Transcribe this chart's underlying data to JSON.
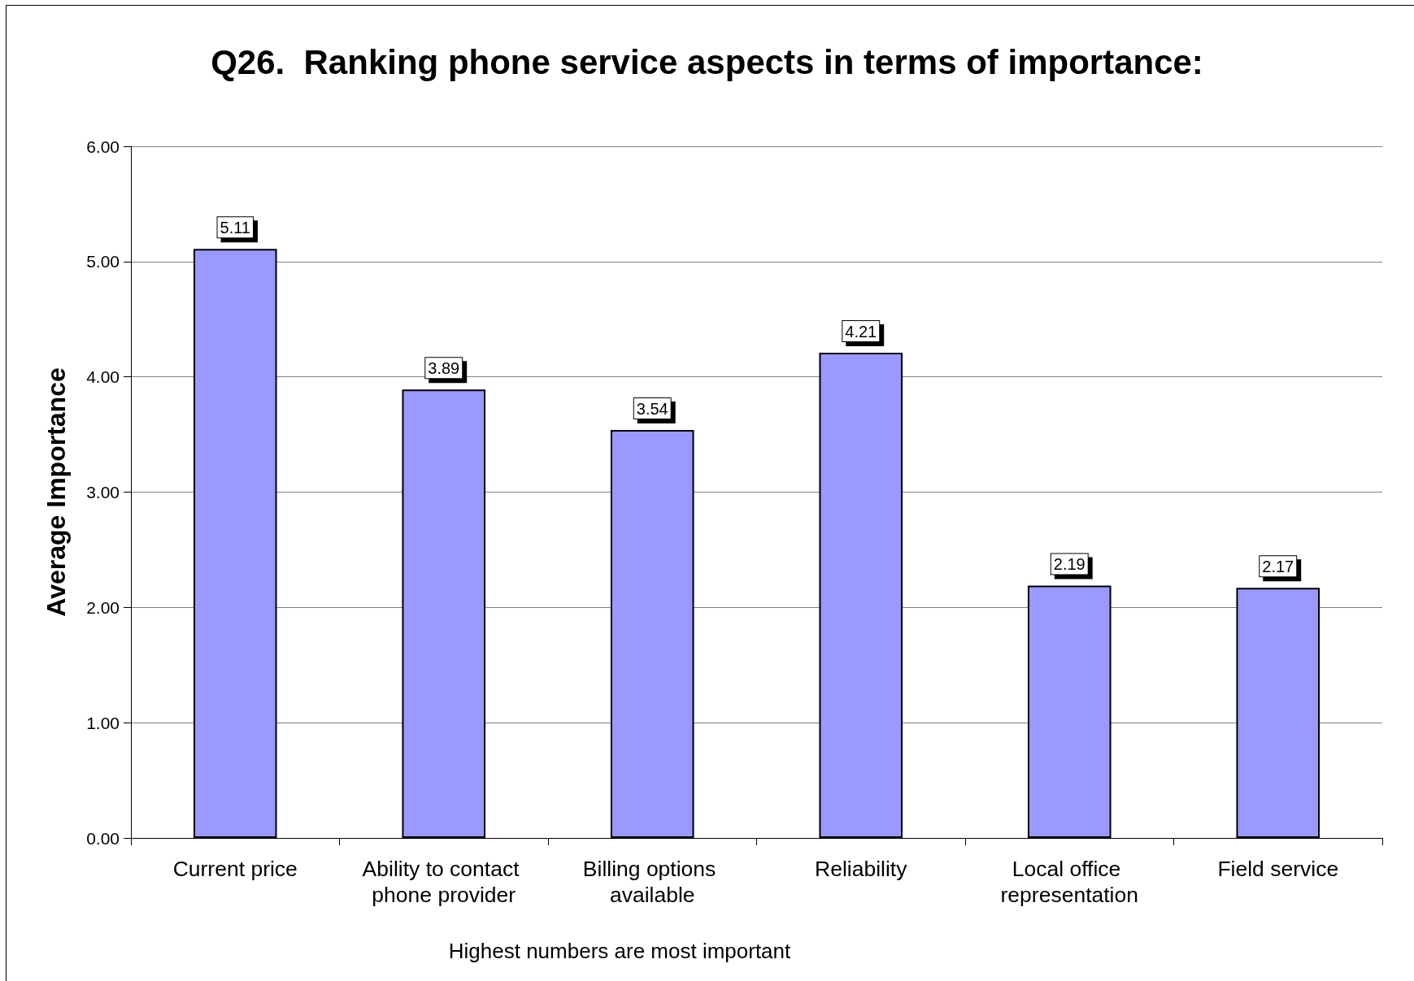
{
  "chart_data": {
    "type": "bar",
    "title": "Q26.  Ranking phone service aspects in terms of importance:",
    "ylabel": "Average Importance",
    "annotations": [
      "Highest numbers are most important"
    ],
    "categories": [
      "Current price",
      "Ability to contact phone provider",
      "Billing options available",
      "Reliability",
      "Local office representation",
      "Field service"
    ],
    "values": [
      5.11,
      3.89,
      3.54,
      4.21,
      2.19,
      2.17
    ],
    "color": "#9999ff",
    "ylim": [
      0,
      6
    ],
    "yticks": [
      {
        "value": 0,
        "label": "0.00"
      },
      {
        "value": 1,
        "label": "1.00"
      },
      {
        "value": 2,
        "label": "2.00"
      },
      {
        "value": 3,
        "label": "3.00"
      },
      {
        "value": 4,
        "label": "4.00"
      },
      {
        "value": 5,
        "label": "5.00"
      },
      {
        "value": 6,
        "label": "6.00"
      }
    ],
    "grid": "y",
    "data_labels": true
  }
}
